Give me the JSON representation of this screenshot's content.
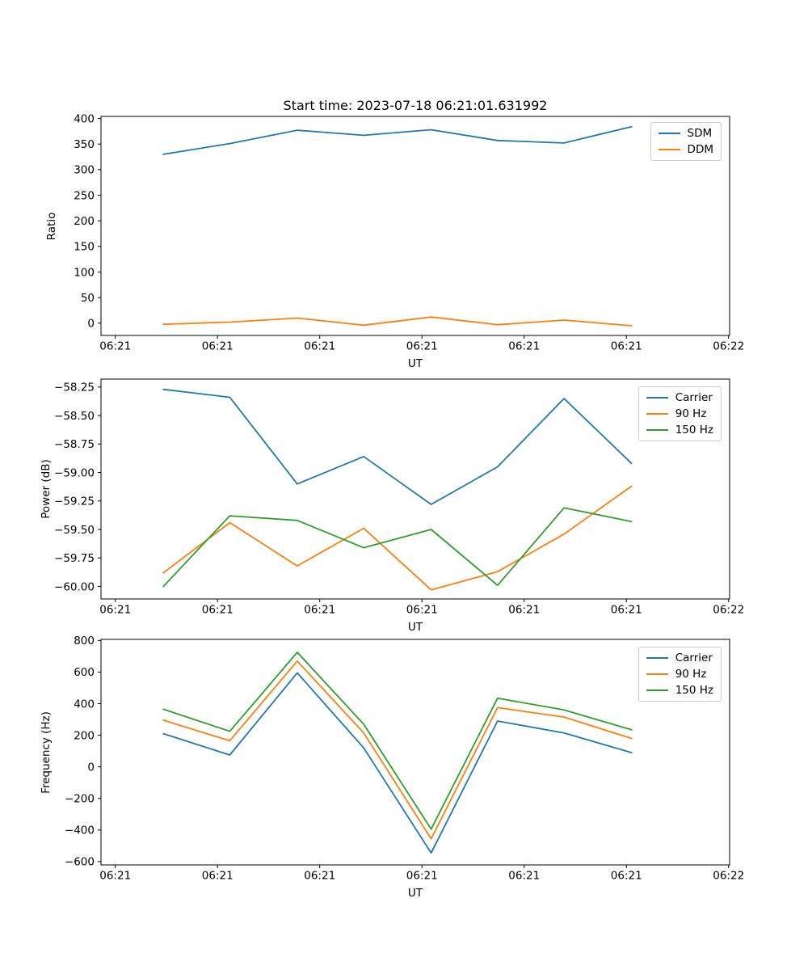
{
  "title": "Start time: 2023-07-18 06:21:01.631992",
  "chart_data": [
    {
      "type": "line",
      "title": "Start time: 2023-07-18 06:21:01.631992",
      "ylabel": "Ratio",
      "xlabel": "UT",
      "legend_position": "upper right",
      "grid": false,
      "x_seconds": [
        4.7,
        11.2,
        17.8,
        24.3,
        30.9,
        37.4,
        43.9,
        50.5
      ],
      "xlim_seconds": [
        -1.4,
        60.1
      ],
      "xticks_seconds": [
        0,
        10,
        20,
        30,
        40,
        50,
        60
      ],
      "xtick_labels": [
        "06:21",
        "06:21",
        "06:21",
        "06:21",
        "06:21",
        "06:21",
        "06:22"
      ],
      "ylim": [
        -24,
        404
      ],
      "yticks": [
        400,
        350,
        300,
        250,
        200,
        150,
        100,
        50,
        0
      ],
      "ytick_labels": [
        "400",
        "350",
        "300",
        "250",
        "200",
        "150",
        "100",
        "50",
        "0"
      ],
      "series": [
        {
          "name": "SDM",
          "color": "#1f77b4",
          "values": [
            330,
            351,
            377,
            367,
            378,
            357,
            352,
            384
          ]
        },
        {
          "name": "DDM",
          "color": "#ff7f0e",
          "values": [
            -2,
            2,
            10,
            -4,
            12,
            -3,
            6,
            -5
          ]
        }
      ]
    },
    {
      "type": "line",
      "title": "",
      "ylabel": "Power (dB)",
      "xlabel": "UT",
      "legend_position": "upper right",
      "grid": false,
      "x_seconds": [
        4.7,
        11.2,
        17.8,
        24.3,
        30.9,
        37.4,
        43.9,
        50.5
      ],
      "xlim_seconds": [
        -1.4,
        60.1
      ],
      "xticks_seconds": [
        0,
        10,
        20,
        30,
        40,
        50,
        60
      ],
      "xtick_labels": [
        "06:21",
        "06:21",
        "06:21",
        "06:21",
        "06:21",
        "06:21",
        "06:22"
      ],
      "ylim": [
        -60.11,
        -58.18
      ],
      "yticks": [
        -58.25,
        -58.5,
        -58.75,
        -59.0,
        -59.25,
        -59.5,
        -59.75,
        -60.0
      ],
      "ytick_labels": [
        "−58.25",
        "−58.50",
        "−58.75",
        "−59.00",
        "−59.25",
        "−59.50",
        "−59.75",
        "−60.00"
      ],
      "series": [
        {
          "name": "Carrier",
          "color": "#1f77b4",
          "values": [
            -58.27,
            -58.34,
            -59.1,
            -58.86,
            -59.28,
            -58.95,
            -58.35,
            -58.92
          ]
        },
        {
          "name": "90 Hz",
          "color": "#ff7f0e",
          "values": [
            -59.88,
            -59.44,
            -59.82,
            -59.49,
            -60.03,
            -59.87,
            -59.54,
            -59.12
          ]
        },
        {
          "name": "150 Hz",
          "color": "#2ca02c",
          "values": [
            -60.0,
            -59.38,
            -59.42,
            -59.66,
            -59.5,
            -59.99,
            -59.31,
            -59.43
          ]
        }
      ]
    },
    {
      "type": "line",
      "title": "",
      "ylabel": "Frequency (Hz)",
      "xlabel": "UT",
      "legend_position": "upper right",
      "grid": false,
      "x_seconds": [
        4.7,
        11.2,
        17.8,
        24.3,
        30.9,
        37.4,
        43.9,
        50.5
      ],
      "xlim_seconds": [
        -1.4,
        60.1
      ],
      "xticks_seconds": [
        0,
        10,
        20,
        30,
        40,
        50,
        60
      ],
      "xtick_labels": [
        "06:21",
        "06:21",
        "06:21",
        "06:21",
        "06:21",
        "06:21",
        "06:22"
      ],
      "ylim": [
        -621,
        807
      ],
      "yticks": [
        800,
        600,
        400,
        200,
        0,
        -200,
        -400,
        -600
      ],
      "ytick_labels": [
        "800",
        "600",
        "400",
        "200",
        "0",
        "−200",
        "−400",
        "−600"
      ],
      "series": [
        {
          "name": "Carrier",
          "color": "#1f77b4",
          "values": [
            210,
            75,
            595,
            120,
            -545,
            290,
            215,
            90
          ]
        },
        {
          "name": "90 Hz",
          "color": "#ff7f0e",
          "values": [
            295,
            165,
            670,
            215,
            -455,
            375,
            315,
            180
          ]
        },
        {
          "name": "150 Hz",
          "color": "#2ca02c",
          "values": [
            365,
            225,
            725,
            270,
            -395,
            435,
            360,
            235
          ]
        }
      ]
    }
  ]
}
